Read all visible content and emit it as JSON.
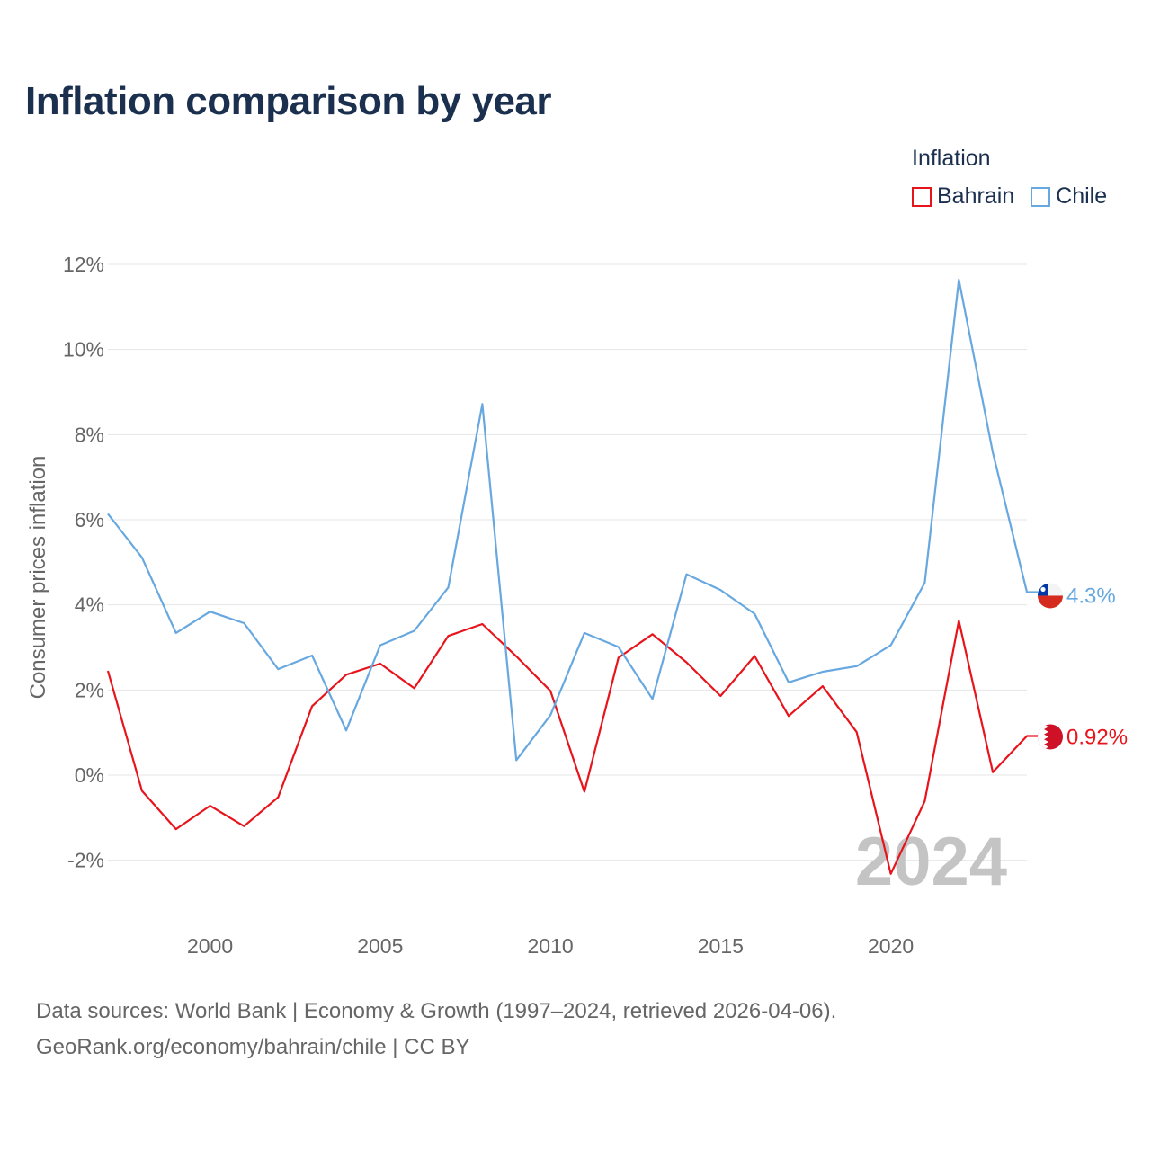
{
  "title": "Inflation comparison by year",
  "legend": {
    "title": "Inflation",
    "items": [
      {
        "label": "Bahrain",
        "color": "#e8141c"
      },
      {
        "label": "Chile",
        "color": "#68a8e0"
      }
    ]
  },
  "sources": {
    "line1": "Data sources: World Bank | Economy & Growth (1997–2024, retrieved 2026-04-06).",
    "line2": "GeoRank.org/economy/bahrain/chile | CC BY"
  },
  "chart_data": {
    "type": "line",
    "title": "Inflation comparison by year",
    "xlabel": "",
    "ylabel": "Consumer prices inflation",
    "xlim": [
      1997,
      2024
    ],
    "ylim": [
      -2.5,
      12.5
    ],
    "yticks": [
      -2,
      0,
      2,
      4,
      6,
      8,
      10,
      12
    ],
    "ytick_labels": [
      "-2%",
      "0%",
      "2%",
      "4%",
      "6%",
      "8%",
      "10%",
      "12%"
    ],
    "xticks": [
      2000,
      2005,
      2010,
      2015,
      2020
    ],
    "xtick_labels": [
      "2000",
      "2005",
      "2010",
      "2015",
      "2020"
    ],
    "grid": true,
    "watermark": "2024",
    "x": [
      1997,
      1998,
      1999,
      2000,
      2001,
      2002,
      2003,
      2004,
      2005,
      2006,
      2007,
      2008,
      2009,
      2010,
      2011,
      2012,
      2013,
      2014,
      2015,
      2016,
      2017,
      2018,
      2019,
      2020,
      2021,
      2022,
      2023,
      2024
    ],
    "series": [
      {
        "name": "Bahrain",
        "color": "#e8141c",
        "end_label": "0.92%",
        "values": [
          2.45,
          -0.37,
          -1.27,
          -0.72,
          -1.2,
          -0.52,
          1.62,
          2.36,
          2.62,
          2.04,
          3.27,
          3.55,
          2.79,
          1.98,
          -0.39,
          2.76,
          3.31,
          2.65,
          1.86,
          2.8,
          1.39,
          2.09,
          1.01,
          -2.32,
          -0.61,
          3.63,
          0.07,
          0.92
        ]
      },
      {
        "name": "Chile",
        "color": "#68a8e0",
        "end_label": "4.3%",
        "values": [
          6.14,
          5.11,
          3.34,
          3.84,
          3.57,
          2.49,
          2.81,
          1.05,
          3.05,
          3.39,
          4.41,
          8.72,
          0.35,
          1.41,
          3.34,
          3.01,
          1.79,
          4.72,
          4.35,
          3.79,
          2.18,
          2.43,
          2.56,
          3.05,
          4.52,
          11.64,
          7.58,
          4.3
        ]
      }
    ]
  }
}
